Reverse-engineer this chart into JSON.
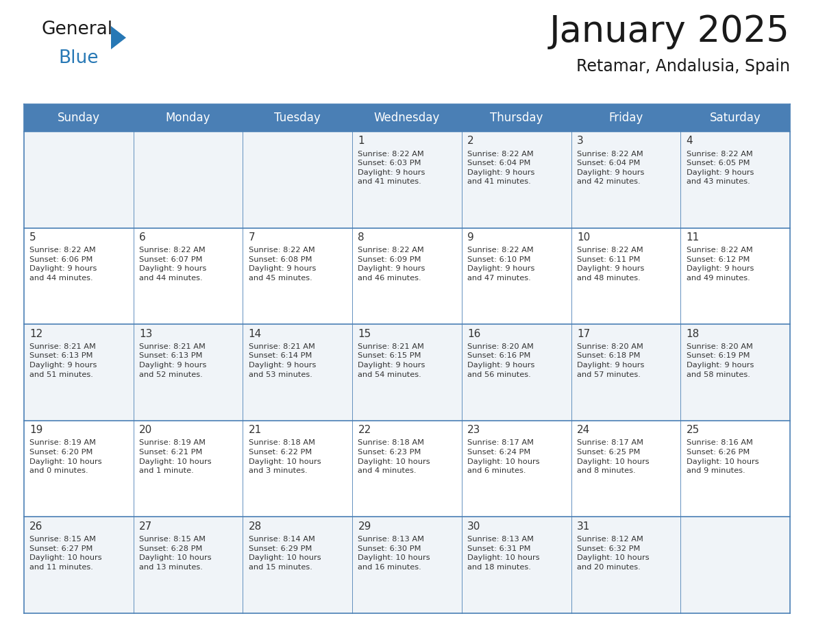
{
  "title": "January 2025",
  "subtitle": "Retamar, Andalusia, Spain",
  "header_bg": "#4a7fb5",
  "header_text": "#ffffff",
  "cell_bg_odd": "#f0f4f8",
  "cell_bg_even": "#ffffff",
  "row_border_color": "#4a7fb5",
  "text_color": "#333333",
  "days_of_week": [
    "Sunday",
    "Monday",
    "Tuesday",
    "Wednesday",
    "Thursday",
    "Friday",
    "Saturday"
  ],
  "calendar": [
    [
      {
        "day": "",
        "info": ""
      },
      {
        "day": "",
        "info": ""
      },
      {
        "day": "",
        "info": ""
      },
      {
        "day": "1",
        "info": "Sunrise: 8:22 AM\nSunset: 6:03 PM\nDaylight: 9 hours\nand 41 minutes."
      },
      {
        "day": "2",
        "info": "Sunrise: 8:22 AM\nSunset: 6:04 PM\nDaylight: 9 hours\nand 41 minutes."
      },
      {
        "day": "3",
        "info": "Sunrise: 8:22 AM\nSunset: 6:04 PM\nDaylight: 9 hours\nand 42 minutes."
      },
      {
        "day": "4",
        "info": "Sunrise: 8:22 AM\nSunset: 6:05 PM\nDaylight: 9 hours\nand 43 minutes."
      }
    ],
    [
      {
        "day": "5",
        "info": "Sunrise: 8:22 AM\nSunset: 6:06 PM\nDaylight: 9 hours\nand 44 minutes."
      },
      {
        "day": "6",
        "info": "Sunrise: 8:22 AM\nSunset: 6:07 PM\nDaylight: 9 hours\nand 44 minutes."
      },
      {
        "day": "7",
        "info": "Sunrise: 8:22 AM\nSunset: 6:08 PM\nDaylight: 9 hours\nand 45 minutes."
      },
      {
        "day": "8",
        "info": "Sunrise: 8:22 AM\nSunset: 6:09 PM\nDaylight: 9 hours\nand 46 minutes."
      },
      {
        "day": "9",
        "info": "Sunrise: 8:22 AM\nSunset: 6:10 PM\nDaylight: 9 hours\nand 47 minutes."
      },
      {
        "day": "10",
        "info": "Sunrise: 8:22 AM\nSunset: 6:11 PM\nDaylight: 9 hours\nand 48 minutes."
      },
      {
        "day": "11",
        "info": "Sunrise: 8:22 AM\nSunset: 6:12 PM\nDaylight: 9 hours\nand 49 minutes."
      }
    ],
    [
      {
        "day": "12",
        "info": "Sunrise: 8:21 AM\nSunset: 6:13 PM\nDaylight: 9 hours\nand 51 minutes."
      },
      {
        "day": "13",
        "info": "Sunrise: 8:21 AM\nSunset: 6:13 PM\nDaylight: 9 hours\nand 52 minutes."
      },
      {
        "day": "14",
        "info": "Sunrise: 8:21 AM\nSunset: 6:14 PM\nDaylight: 9 hours\nand 53 minutes."
      },
      {
        "day": "15",
        "info": "Sunrise: 8:21 AM\nSunset: 6:15 PM\nDaylight: 9 hours\nand 54 minutes."
      },
      {
        "day": "16",
        "info": "Sunrise: 8:20 AM\nSunset: 6:16 PM\nDaylight: 9 hours\nand 56 minutes."
      },
      {
        "day": "17",
        "info": "Sunrise: 8:20 AM\nSunset: 6:18 PM\nDaylight: 9 hours\nand 57 minutes."
      },
      {
        "day": "18",
        "info": "Sunrise: 8:20 AM\nSunset: 6:19 PM\nDaylight: 9 hours\nand 58 minutes."
      }
    ],
    [
      {
        "day": "19",
        "info": "Sunrise: 8:19 AM\nSunset: 6:20 PM\nDaylight: 10 hours\nand 0 minutes."
      },
      {
        "day": "20",
        "info": "Sunrise: 8:19 AM\nSunset: 6:21 PM\nDaylight: 10 hours\nand 1 minute."
      },
      {
        "day": "21",
        "info": "Sunrise: 8:18 AM\nSunset: 6:22 PM\nDaylight: 10 hours\nand 3 minutes."
      },
      {
        "day": "22",
        "info": "Sunrise: 8:18 AM\nSunset: 6:23 PM\nDaylight: 10 hours\nand 4 minutes."
      },
      {
        "day": "23",
        "info": "Sunrise: 8:17 AM\nSunset: 6:24 PM\nDaylight: 10 hours\nand 6 minutes."
      },
      {
        "day": "24",
        "info": "Sunrise: 8:17 AM\nSunset: 6:25 PM\nDaylight: 10 hours\nand 8 minutes."
      },
      {
        "day": "25",
        "info": "Sunrise: 8:16 AM\nSunset: 6:26 PM\nDaylight: 10 hours\nand 9 minutes."
      }
    ],
    [
      {
        "day": "26",
        "info": "Sunrise: 8:15 AM\nSunset: 6:27 PM\nDaylight: 10 hours\nand 11 minutes."
      },
      {
        "day": "27",
        "info": "Sunrise: 8:15 AM\nSunset: 6:28 PM\nDaylight: 10 hours\nand 13 minutes."
      },
      {
        "day": "28",
        "info": "Sunrise: 8:14 AM\nSunset: 6:29 PM\nDaylight: 10 hours\nand 15 minutes."
      },
      {
        "day": "29",
        "info": "Sunrise: 8:13 AM\nSunset: 6:30 PM\nDaylight: 10 hours\nand 16 minutes."
      },
      {
        "day": "30",
        "info": "Sunrise: 8:13 AM\nSunset: 6:31 PM\nDaylight: 10 hours\nand 18 minutes."
      },
      {
        "day": "31",
        "info": "Sunrise: 8:12 AM\nSunset: 6:32 PM\nDaylight: 10 hours\nand 20 minutes."
      },
      {
        "day": "",
        "info": ""
      }
    ]
  ]
}
